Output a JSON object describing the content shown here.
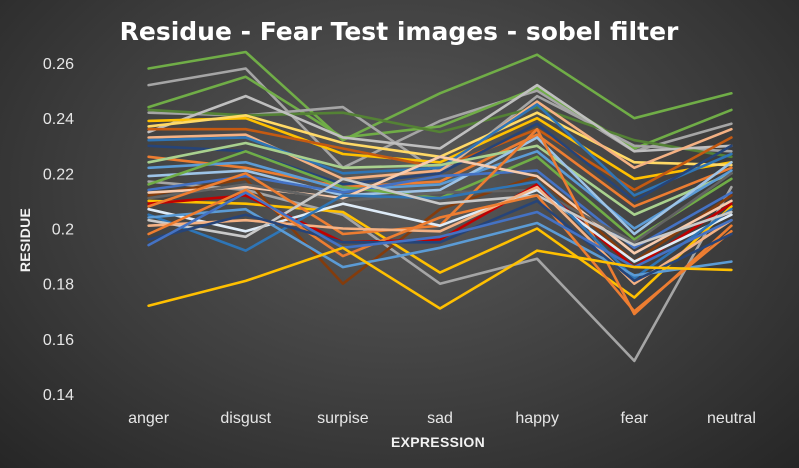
{
  "chart_data": {
    "type": "line",
    "title": "Residue - Fear Test images - sobel filter",
    "xlabel": "EXPRESSION",
    "ylabel": "RESIDUE",
    "categories": [
      "anger",
      "disgust",
      "surpise",
      "sad",
      "happy",
      "fear",
      "neutral"
    ],
    "ylim": [
      0.14,
      0.26
    ],
    "yticks": [
      "0.14",
      "0.16",
      "0.18",
      "0.2",
      "0.22",
      "0.24",
      "0.26"
    ],
    "grid": false,
    "legend": "none",
    "series": [
      {
        "color": "#70ad47",
        "values": [
          0.258,
          0.264,
          0.232,
          0.249,
          0.263,
          0.24,
          0.249
        ]
      },
      {
        "color": "#a5a5a5",
        "values": [
          0.252,
          0.258,
          0.222,
          0.239,
          0.25,
          0.228,
          0.238
        ]
      },
      {
        "color": "#70ad47",
        "values": [
          0.244,
          0.255,
          0.233,
          0.237,
          0.251,
          0.229,
          0.243
        ]
      },
      {
        "color": "#a5a5a5",
        "values": [
          0.242,
          0.241,
          0.244,
          0.22,
          0.248,
          0.23,
          0.228
        ]
      },
      {
        "color": "#548235",
        "values": [
          0.243,
          0.241,
          0.242,
          0.235,
          0.244,
          0.232,
          0.226
        ]
      },
      {
        "color": "#bfbfbf",
        "values": [
          0.235,
          0.248,
          0.233,
          0.229,
          0.252,
          0.228,
          0.23
        ]
      },
      {
        "color": "#ffc000",
        "values": [
          0.239,
          0.24,
          0.227,
          0.224,
          0.24,
          0.218,
          0.224
        ]
      },
      {
        "color": "#ffd966",
        "values": [
          0.237,
          0.241,
          0.231,
          0.226,
          0.242,
          0.224,
          0.223
        ]
      },
      {
        "color": "#c55a11",
        "values": [
          0.236,
          0.236,
          0.229,
          0.222,
          0.236,
          0.214,
          0.233
        ]
      },
      {
        "color": "#f4b183",
        "values": [
          0.233,
          0.234,
          0.218,
          0.221,
          0.246,
          0.222,
          0.236
        ]
      },
      {
        "color": "#2e75b6",
        "values": [
          0.232,
          0.233,
          0.22,
          0.222,
          0.245,
          0.212,
          0.227
        ]
      },
      {
        "color": "#264478",
        "values": [
          0.23,
          0.228,
          0.216,
          0.22,
          0.238,
          0.21,
          0.23
        ]
      },
      {
        "color": "#ed7d31",
        "values": [
          0.226,
          0.222,
          0.215,
          0.217,
          0.234,
          0.208,
          0.222
        ]
      },
      {
        "color": "#a9d18e",
        "values": [
          0.224,
          0.231,
          0.222,
          0.223,
          0.23,
          0.205,
          0.22
        ]
      },
      {
        "color": "#5b9bd5",
        "values": [
          0.222,
          0.224,
          0.214,
          0.216,
          0.228,
          0.2,
          0.221
        ]
      },
      {
        "color": "#9dc3e6",
        "values": [
          0.219,
          0.221,
          0.212,
          0.214,
          0.233,
          0.198,
          0.224
        ]
      },
      {
        "color": "#a5a5a5",
        "values": [
          0.217,
          0.214,
          0.205,
          0.18,
          0.189,
          0.152,
          0.215
        ]
      },
      {
        "color": "#70ad47",
        "values": [
          0.216,
          0.228,
          0.215,
          0.211,
          0.226,
          0.196,
          0.218
        ]
      },
      {
        "color": "#4472c4",
        "values": [
          0.214,
          0.219,
          0.213,
          0.219,
          0.221,
          0.193,
          0.213
        ]
      },
      {
        "color": "#843c0c",
        "values": [
          0.212,
          0.218,
          0.18,
          0.207,
          0.219,
          0.188,
          0.212
        ]
      },
      {
        "color": "#f8cbad",
        "values": [
          0.213,
          0.215,
          0.211,
          0.226,
          0.219,
          0.191,
          0.21
        ]
      },
      {
        "color": "#636363",
        "values": [
          0.211,
          0.216,
          0.21,
          0.213,
          0.214,
          0.195,
          0.22
        ]
      },
      {
        "color": "#ffc000",
        "values": [
          0.21,
          0.209,
          0.206,
          0.184,
          0.2,
          0.175,
          0.208
        ]
      },
      {
        "color": "#c00000",
        "values": [
          0.209,
          0.212,
          0.195,
          0.196,
          0.216,
          0.186,
          0.209
        ]
      },
      {
        "color": "#ed7d31",
        "values": [
          0.208,
          0.22,
          0.198,
          0.201,
          0.236,
          0.169,
          0.201
        ]
      },
      {
        "color": "#deebf7",
        "values": [
          0.207,
          0.199,
          0.209,
          0.201,
          0.214,
          0.188,
          0.205
        ]
      },
      {
        "color": "#2e75b6",
        "values": [
          0.205,
          0.192,
          0.212,
          0.211,
          0.217,
          0.182,
          0.207
        ]
      },
      {
        "color": "#5b9bd5",
        "values": [
          0.204,
          0.207,
          0.186,
          0.193,
          0.202,
          0.183,
          0.188
        ]
      },
      {
        "color": "#c9c9c9",
        "values": [
          0.203,
          0.197,
          0.218,
          0.209,
          0.212,
          0.194,
          0.206
        ]
      },
      {
        "color": "#f4b183",
        "values": [
          0.201,
          0.203,
          0.2,
          0.199,
          0.215,
          0.18,
          0.203
        ]
      },
      {
        "color": "#ed7d31",
        "values": [
          0.198,
          0.214,
          0.19,
          0.204,
          0.212,
          0.17,
          0.199
        ]
      },
      {
        "color": "#264478",
        "values": [
          0.196,
          0.205,
          0.195,
          0.195,
          0.21,
          0.181,
          0.198
        ]
      },
      {
        "color": "#4472c4",
        "values": [
          0.194,
          0.213,
          0.193,
          0.197,
          0.206,
          0.186,
          0.203
        ]
      },
      {
        "color": "#ffc000",
        "values": [
          0.172,
          0.181,
          0.193,
          0.171,
          0.192,
          0.186,
          0.185
        ]
      }
    ]
  }
}
